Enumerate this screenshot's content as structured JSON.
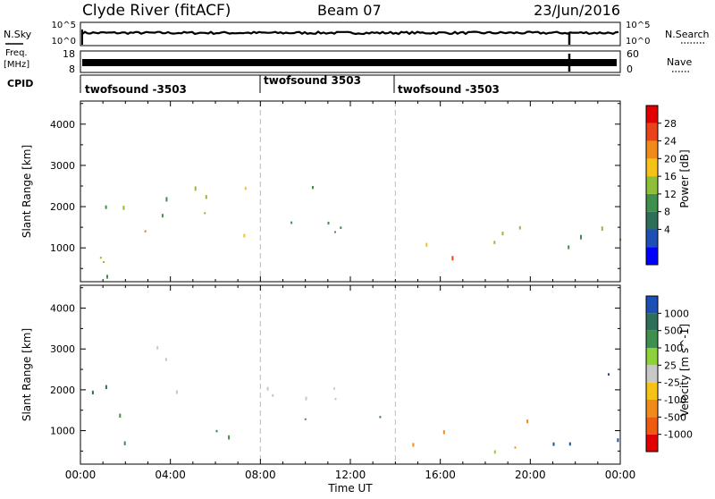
{
  "header": {
    "station": "Clyde River (fitACF)",
    "beam": "Beam 07",
    "date": "23/Jun/2016"
  },
  "strip_nsky": {
    "left_label": "N.Sky",
    "right_label": "N.Search",
    "left_ticks": [
      "10^5",
      "10^0"
    ],
    "right_ticks": [
      "10^5",
      "10^0"
    ]
  },
  "strip_freq": {
    "left_label_1": "Freq.",
    "left_label_2": "[MHz]",
    "right_label": "Nave",
    "left_ticks": [
      "18",
      "8"
    ],
    "right_ticks": [
      "60",
      "0"
    ]
  },
  "cpid": {
    "label": "CPID",
    "segments": [
      {
        "label": "twofsound -3503",
        "start_hour": 0,
        "end_hour": 8
      },
      {
        "label": "twofsound 3503",
        "start_hour": 8,
        "end_hour": 14
      },
      {
        "label": "twofsound -3503",
        "start_hour": 14,
        "end_hour": 24
      }
    ]
  },
  "chart_data": [
    {
      "type": "heatmap",
      "name": "power",
      "ylabel": "Slant Range [km]",
      "yticks": [
        1000,
        2000,
        3000,
        4000
      ],
      "ylim": [
        180,
        4560
      ],
      "xlim": [
        0,
        24
      ],
      "colorbar": {
        "label": "Power [dB]",
        "ticks": [
          "28",
          "24",
          "20",
          "16",
          "12",
          "8",
          "4"
        ],
        "colors": [
          "#0000ff",
          "#1e4fb5",
          "#2f6f5a",
          "#3f8f4f",
          "#8fbf3a",
          "#f5c318",
          "#f08a18",
          "#e8431a",
          "#e00000"
        ]
      },
      "regions": [
        {
          "t0": 0.0,
          "t1": 1.2,
          "r0": 300,
          "r1": 2200,
          "level": 3
        },
        {
          "t0": 0.8,
          "t1": 2.6,
          "r0": 500,
          "r1": 2600,
          "level": 4
        },
        {
          "t0": 2.0,
          "t1": 3.4,
          "r0": 200,
          "r1": 1500,
          "level": 6
        },
        {
          "t0": 2.8,
          "t1": 3.4,
          "r0": 200,
          "r1": 500,
          "level": 8
        },
        {
          "t0": 3.4,
          "t1": 5.0,
          "r0": 1500,
          "r1": 3100,
          "level": 3
        },
        {
          "t0": 4.5,
          "t1": 7.0,
          "r0": 1200,
          "r1": 2800,
          "level": 4
        },
        {
          "t0": 7.0,
          "t1": 9.0,
          "r0": 1000,
          "r1": 2600,
          "level": 5
        },
        {
          "t0": 9.0,
          "t1": 11.0,
          "r0": 1500,
          "r1": 3300,
          "level": 3
        },
        {
          "t0": 10.5,
          "t1": 13.0,
          "r0": 1400,
          "r1": 2700,
          "level": 3
        },
        {
          "t0": 13.5,
          "t1": 15.5,
          "r0": 500,
          "r1": 1300,
          "level": 5
        },
        {
          "t0": 15.5,
          "t1": 17.8,
          "r0": 220,
          "r1": 900,
          "level": 7
        },
        {
          "t0": 16.0,
          "t1": 17.2,
          "r0": 220,
          "r1": 500,
          "level": 8
        },
        {
          "t0": 17.5,
          "t1": 20.0,
          "r0": 600,
          "r1": 2000,
          "level": 4
        },
        {
          "t0": 19.2,
          "t1": 19.9,
          "r0": 220,
          "r1": 500,
          "level": 8
        },
        {
          "t0": 20.0,
          "t1": 22.5,
          "r0": 300,
          "r1": 1500,
          "level": 3
        },
        {
          "t0": 22.5,
          "t1": 24.0,
          "r0": 400,
          "r1": 2700,
          "level": 4
        }
      ]
    },
    {
      "type": "heatmap",
      "name": "velocity",
      "ylabel": "Slant Range [km]",
      "yticks": [
        1000,
        2000,
        3000,
        4000
      ],
      "ylim": [
        180,
        4560
      ],
      "xlim": [
        0,
        24
      ],
      "colorbar": {
        "label": "Velocity [m s^-1]",
        "ticks": [
          "1000",
          "500",
          "100",
          "25",
          "-25",
          "-100",
          "-500",
          "-1000"
        ],
        "colors": [
          "#e00000",
          "#ee5a10",
          "#f08a18",
          "#f5c318",
          "#c8c8c8",
          "#8fd13a",
          "#3f8f4f",
          "#2f6f5a",
          "#1e4fb5"
        ]
      },
      "regions": [
        {
          "t0": 0.0,
          "t1": 1.5,
          "r0": 300,
          "r1": 2200,
          "level": 7
        },
        {
          "t0": 1.5,
          "t1": 3.6,
          "r0": 500,
          "r1": 1500,
          "level": 6
        },
        {
          "t0": 2.5,
          "t1": 4.5,
          "r0": 1500,
          "r1": 3300,
          "level": 4
        },
        {
          "t0": 4.5,
          "t1": 8.0,
          "r0": 700,
          "r1": 1500,
          "level": 6
        },
        {
          "t0": 5.0,
          "t1": 9.0,
          "r0": 1800,
          "r1": 2600,
          "level": 4
        },
        {
          "t0": 9.0,
          "t1": 11.5,
          "r0": 1800,
          "r1": 3300,
          "level": 4
        },
        {
          "t0": 9.5,
          "t1": 13.5,
          "r0": 800,
          "r1": 1600,
          "level": 6
        },
        {
          "t0": 14.5,
          "t1": 16.5,
          "r0": 300,
          "r1": 1500,
          "level": 2
        },
        {
          "t0": 16.0,
          "t1": 18.5,
          "r0": 300,
          "r1": 700,
          "level": 5
        },
        {
          "t0": 17.5,
          "t1": 20.5,
          "r0": 500,
          "r1": 1600,
          "level": 2
        },
        {
          "t0": 20.5,
          "t1": 22.5,
          "r0": 400,
          "r1": 1800,
          "level": 8
        },
        {
          "t0": 22.5,
          "t1": 24.0,
          "r0": 700,
          "r1": 2800,
          "level": 8
        }
      ]
    }
  ],
  "xaxis": {
    "ticks": [
      "00:00",
      "04:00",
      "08:00",
      "12:00",
      "16:00",
      "20:00",
      "00:00"
    ],
    "label": "Time UT"
  }
}
